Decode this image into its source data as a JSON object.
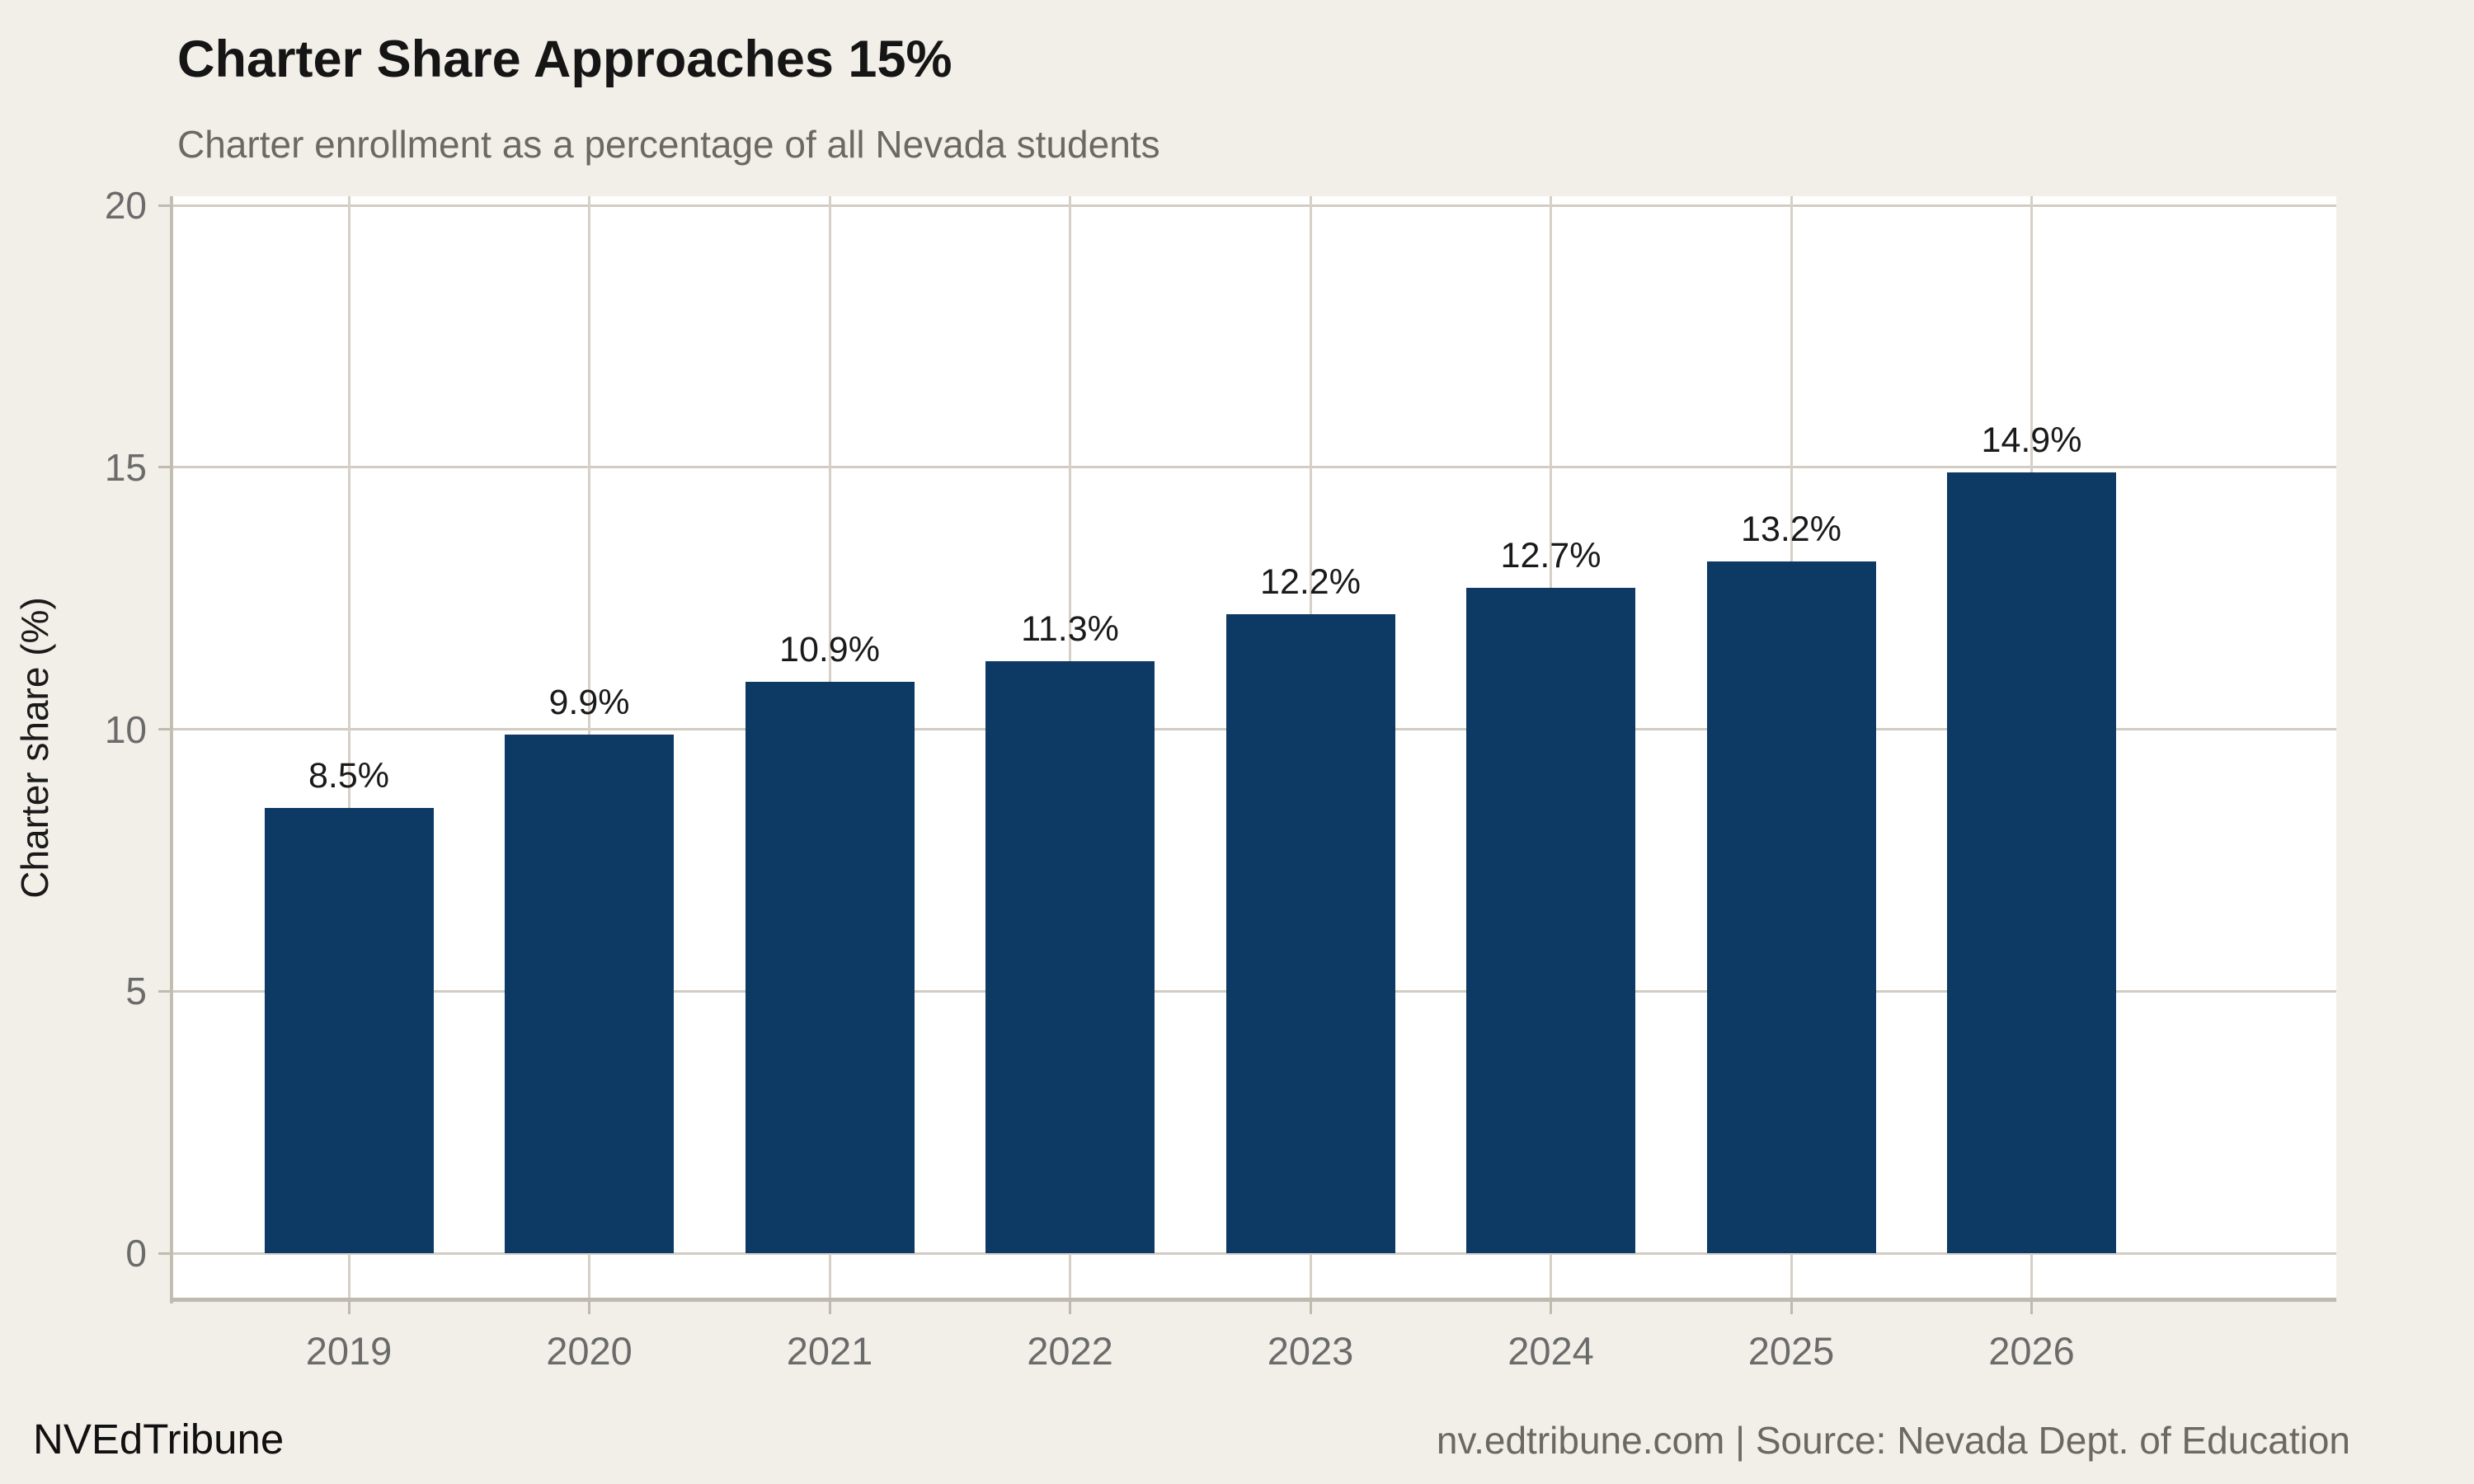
{
  "header": {
    "title": "Charter Share Approaches 15%",
    "subtitle": "Charter enrollment as a percentage of all Nevada students"
  },
  "footer": {
    "brand": "NVEdTribune",
    "source": "nv.edtribune.com | Source: Nevada Dept. of Education"
  },
  "colors": {
    "background": "#f2efe9",
    "plot_background": "#ffffff",
    "bar": "#0d3a64",
    "gridline": "#d2ccc2",
    "axis_line": "#c0bab0",
    "title_text": "#151515",
    "muted_text": "#6d6862",
    "value_label_text": "#1a1a1a"
  },
  "chart_data": {
    "type": "bar",
    "title": "Charter Share Approaches 15%",
    "subtitle": "Charter enrollment as a percentage of all Nevada students",
    "categories": [
      "2019",
      "2020",
      "2021",
      "2022",
      "2023",
      "2024",
      "2025",
      "2026"
    ],
    "values": [
      8.5,
      9.9,
      10.9,
      11.3,
      12.2,
      12.7,
      13.2,
      14.9
    ],
    "value_labels": [
      "8.5%",
      "9.9%",
      "10.9%",
      "11.3%",
      "12.2%",
      "12.7%",
      "13.2%",
      "14.9%"
    ],
    "xlabel": "",
    "ylabel": "Charter share (%)",
    "ylim": [
      0,
      20
    ],
    "yticks": [
      0,
      5,
      10,
      15,
      20
    ],
    "grid": true,
    "legend_position": "none"
  }
}
